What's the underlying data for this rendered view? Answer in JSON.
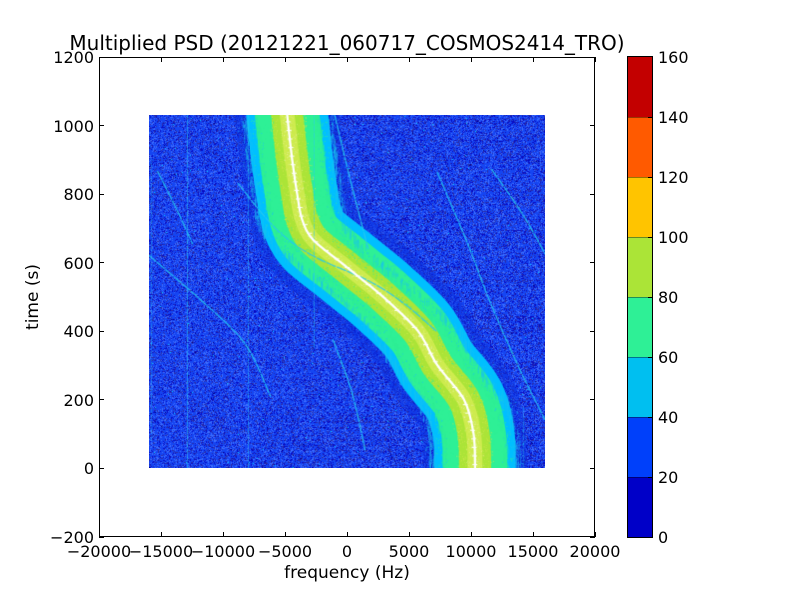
{
  "figure": {
    "title": "Multiplied PSD (20121221_060717_COSMOS2414_TRO)",
    "xlabel": "frequency (Hz)",
    "ylabel": "time (s)",
    "xtick_labels": [
      "−20000",
      "−15000",
      "−10000",
      "−5000",
      "0",
      "5000",
      "10000",
      "15000",
      "20000"
    ],
    "ytick_labels": [
      "−200",
      "0",
      "200",
      "400",
      "600",
      "800",
      "1000",
      "1200"
    ],
    "colorbar_tick_labels": [
      "0",
      "20",
      "40",
      "60",
      "80",
      "100",
      "120",
      "140",
      "160"
    ]
  },
  "chart_data": {
    "type": "heatmap",
    "title": "Multiplied PSD (20121221_060717_COSMOS2414_TRO)",
    "xlabel": "frequency (Hz)",
    "ylabel": "time (s)",
    "xlim": [
      -20000,
      20000
    ],
    "ylim": [
      -200,
      1200
    ],
    "xticks": [
      -20000,
      -15000,
      -10000,
      -5000,
      0,
      5000,
      10000,
      15000,
      20000
    ],
    "yticks": [
      -200,
      0,
      200,
      400,
      600,
      800,
      1000,
      1200
    ],
    "grid": false,
    "legend": "colorbar right",
    "colormap": {
      "name": "jet-discrete-8",
      "clim": [
        0,
        160
      ],
      "levels": [
        0,
        20,
        40,
        60,
        80,
        100,
        120,
        140,
        160
      ],
      "colors": [
        "#0000c8",
        "#0040fa",
        "#00bff0",
        "#2ef096",
        "#abe437",
        "#ffc400",
        "#ff5a00",
        "#c30000"
      ]
    },
    "data_extent": {
      "freq_hz": [
        -16000,
        16000
      ],
      "time_s": [
        0,
        1030
      ]
    },
    "noise": {
      "base_color": "#1545f2",
      "dark_speckle": "#080cc4",
      "purple_speckle": "#2b2da8",
      "light_speckle": "#3e6eff",
      "rare_navy": "#000080",
      "rare_cyan": "#00c8ff"
    },
    "doppler_track": {
      "points_t_f": [
        [
          0,
          10350
        ],
        [
          100,
          10230
        ],
        [
          200,
          9450
        ],
        [
          300,
          7300
        ],
        [
          400,
          5726
        ],
        [
          500,
          2900
        ],
        [
          555,
          1048
        ],
        [
          600,
          -500
        ],
        [
          666,
          -2742
        ],
        [
          725,
          -3629
        ],
        [
          800,
          -4032
        ],
        [
          900,
          -4435
        ],
        [
          1030,
          -4839
        ]
      ],
      "band_layers": [
        {
          "color": "#0b30dc",
          "width_hz": 8400,
          "alpha": 0.5
        },
        {
          "color": "#00bfff",
          "width_hz": 6600,
          "alpha": 1
        },
        {
          "color": "#2ef096",
          "width_hz": 5200,
          "alpha": 1
        },
        {
          "color": "#abe437",
          "width_hz": 2600,
          "alpha": 1
        },
        {
          "color": "#d8ee55",
          "width_hz": 1200,
          "alpha": 0.8
        },
        {
          "color": "#ffffff",
          "width_hz": 220,
          "alpha": 1
        }
      ],
      "marker_interval_s": 25
    },
    "interference_vlines": [
      {
        "f_hz": -15800,
        "t0": 80,
        "t1": 900,
        "alpha": 0.35
      },
      {
        "f_hz": -12900,
        "t0": 0,
        "t1": 1030,
        "alpha": 0.6
      },
      {
        "f_hz": -8000,
        "t0": 0,
        "t1": 1030,
        "alpha": 0.45
      },
      {
        "f_hz": -2700,
        "t0": 350,
        "t1": 1030,
        "alpha": 0.5
      },
      {
        "f_hz": 6700,
        "t0": 0,
        "t1": 170,
        "alpha": 0.4
      },
      {
        "f_hz": 14200,
        "t0": 0,
        "t1": 180,
        "alpha": 0.35
      }
    ],
    "secondary_arcs": [
      {
        "points_t_f": [
          [
            865,
            -15300
          ],
          [
            750,
            -13700
          ],
          [
            655,
            -12500
          ]
        ]
      },
      {
        "points_t_f": [
          [
            830,
            -8800
          ],
          [
            700,
            -5800
          ],
          [
            620,
            -2800
          ],
          [
            545,
            1800
          ],
          [
            480,
            4600
          ],
          [
            400,
            7200
          ]
        ]
      },
      {
        "points_t_f": [
          [
            620,
            -16000
          ],
          [
            480,
            -11500
          ],
          [
            360,
            -8200
          ],
          [
            210,
            -6200
          ]
        ]
      },
      {
        "points_t_f": [
          [
            374,
            -1129
          ],
          [
            220,
            400
          ],
          [
            54,
            1452
          ]
        ]
      },
      {
        "points_t_f": [
          [
            862,
            7300
          ],
          [
            650,
            9800
          ],
          [
            490,
            11500
          ],
          [
            300,
            13800
          ],
          [
            141,
            16000
          ]
        ]
      },
      {
        "points_t_f": [
          [
            871,
            11700
          ],
          [
            740,
            14200
          ],
          [
            625,
            16000
          ]
        ]
      },
      {
        "points_t_f": [
          [
            1030,
            -1000
          ],
          [
            850,
            200
          ],
          [
            640,
            1700
          ]
        ]
      }
    ],
    "arc_color": "#25c8f0"
  }
}
